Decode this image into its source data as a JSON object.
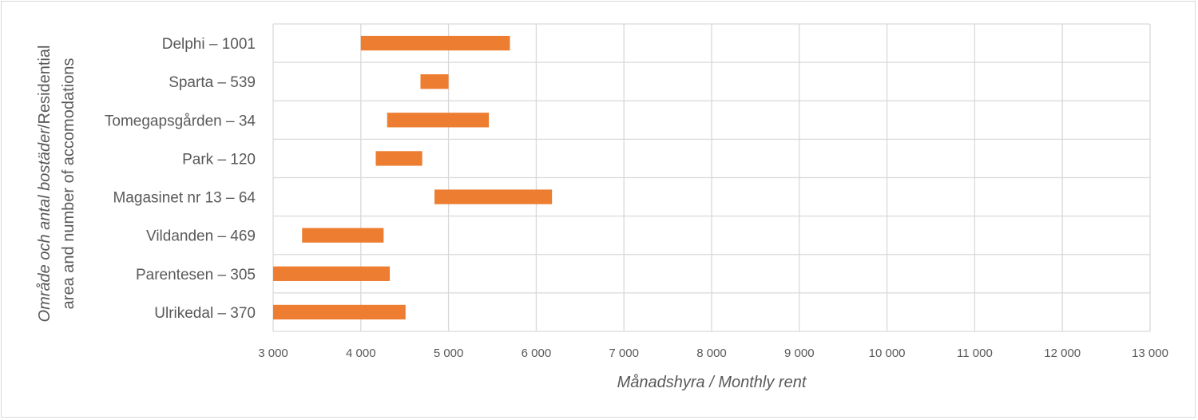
{
  "chart_data": {
    "type": "floating-bar",
    "orientation": "horizontal",
    "categories": [
      "Delphi – 1001",
      "Sparta – 539",
      "Tomegapsgården – 34",
      "Park – 120",
      "Magasinet nr 13 – 64",
      "Vildanden – 469",
      "Parentesen – 305",
      "Ulrikedal – 370"
    ],
    "ranges": [
      [
        4000,
        5700
      ],
      [
        4680,
        5000
      ],
      [
        4300,
        5460
      ],
      [
        4170,
        4700
      ],
      [
        4840,
        6180
      ],
      [
        3330,
        4260
      ],
      [
        3000,
        4330
      ],
      [
        3000,
        4510
      ]
    ],
    "xlim": [
      3000,
      13000
    ],
    "x_ticks": [
      3000,
      4000,
      5000,
      6000,
      7000,
      8000,
      9000,
      10000,
      11000,
      12000,
      13000
    ],
    "x_tick_labels": [
      "3 000",
      "4 000",
      "5 000",
      "6 000",
      "7 000",
      "8 000",
      "9 000",
      "10 000",
      "11 000",
      "12 000",
      "13 000"
    ],
    "xlabel": "Månadshyra / Monthly rent",
    "ylabel_italic": "Område och antal bostäder",
    "ylabel_normal": "/Residential",
    "ylabel_line2": "area and number of accomodations",
    "bar_color": "#ed7d31",
    "grid": "vertical gridlines",
    "legend": "none"
  }
}
